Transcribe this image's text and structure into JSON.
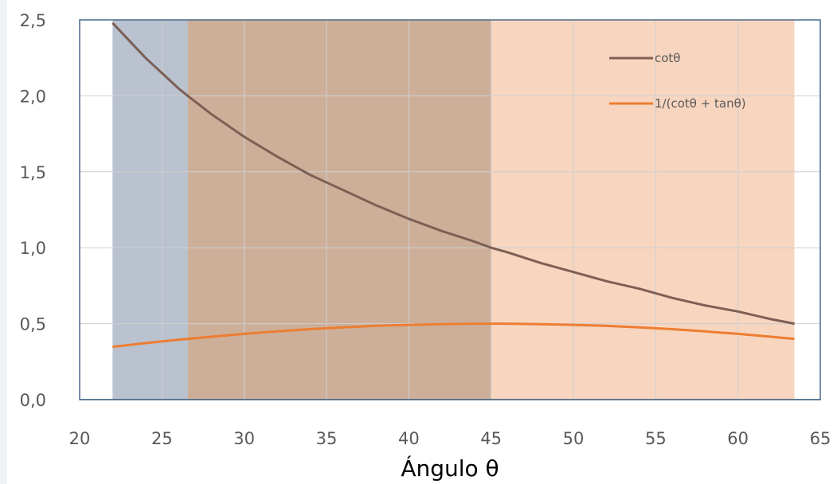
{
  "chart_data": {
    "type": "line",
    "title": "",
    "xlabel": "Ángulo θ",
    "ylabel": "",
    "xlim": [
      20,
      65
    ],
    "ylim": [
      0,
      2.5
    ],
    "x_ticks": [
      "20",
      "25",
      "30",
      "35",
      "40",
      "45",
      "50",
      "55",
      "60",
      "65"
    ],
    "y_ticks": [
      "0,0",
      "0,5",
      "1,0",
      "1,5",
      "2,0",
      "2,5"
    ],
    "grid": true,
    "legend_position": "top-right",
    "bands": [
      {
        "from": 22,
        "to": 26.57,
        "color": "#8a99ad"
      },
      {
        "from": 26.57,
        "to": 45,
        "color": "#ab7a55"
      },
      {
        "from": 45,
        "to": 63.43,
        "color": "#f2b994"
      }
    ],
    "series": [
      {
        "name": "cotθ",
        "color": "#7d5f55",
        "x": [
          22,
          24,
          26,
          26.57,
          28,
          30,
          32,
          34,
          36,
          38,
          40,
          42,
          44,
          45,
          46,
          48,
          50,
          52,
          54,
          56,
          58,
          60,
          62,
          63.43
        ],
        "y": [
          2.48,
          2.25,
          2.05,
          2.0,
          1.88,
          1.73,
          1.6,
          1.48,
          1.38,
          1.28,
          1.19,
          1.11,
          1.04,
          1.0,
          0.97,
          0.9,
          0.84,
          0.78,
          0.73,
          0.67,
          0.62,
          0.58,
          0.53,
          0.5
        ]
      },
      {
        "name": "1/(cotθ + tanθ)",
        "color": "#ed7d31",
        "x": [
          22,
          24,
          26,
          28,
          30,
          32,
          34,
          36,
          38,
          40,
          42,
          44,
          45,
          46,
          48,
          50,
          52,
          54,
          56,
          58,
          60,
          62,
          63.43
        ],
        "y": [
          0.347,
          0.372,
          0.394,
          0.414,
          0.433,
          0.449,
          0.464,
          0.476,
          0.486,
          0.492,
          0.497,
          0.5,
          0.5,
          0.5,
          0.497,
          0.492,
          0.486,
          0.476,
          0.464,
          0.449,
          0.433,
          0.414,
          0.4
        ]
      }
    ]
  }
}
